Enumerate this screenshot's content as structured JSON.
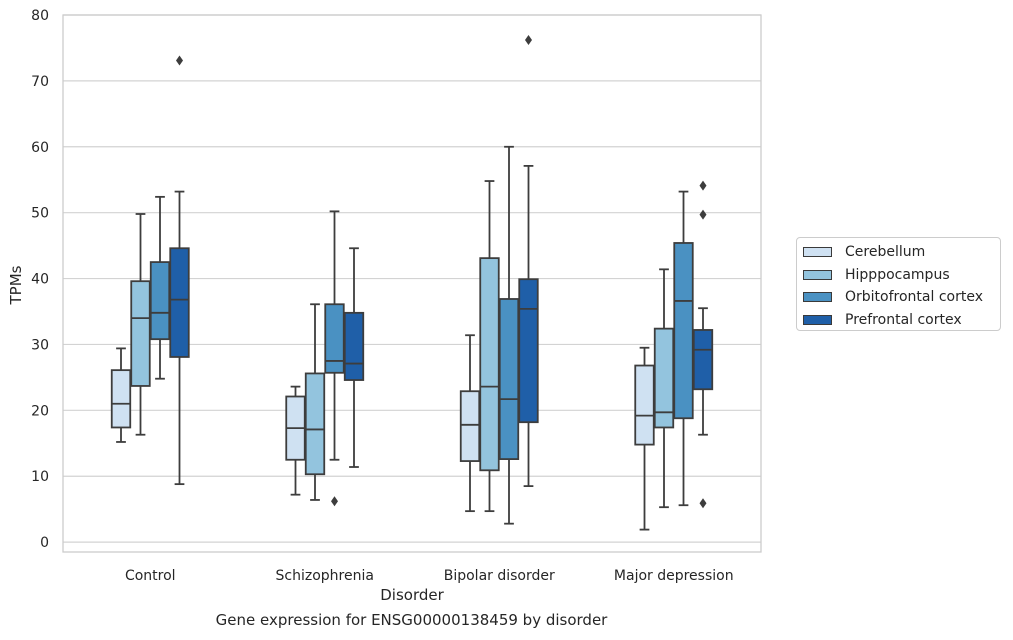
{
  "chart_data": {
    "type": "boxplot",
    "title": "",
    "caption": "Gene expression for ENSG00000138459 by disorder",
    "xlabel": "Disorder",
    "ylabel": "TPMs",
    "ylim": [
      -1.5,
      80
    ],
    "yticks": [
      0,
      10,
      20,
      30,
      40,
      50,
      60,
      70,
      80
    ],
    "grid": "horizontal",
    "legend_position": "right",
    "categories": [
      "Control",
      "Schizophrenia",
      "Bipolar disorder",
      "Major depression"
    ],
    "series": [
      {
        "name": "Cerebellum",
        "color": "#cfe1f2",
        "boxes": [
          {
            "whisker_low": 15.2,
            "q1": 17.4,
            "median": 21.0,
            "q3": 26.1,
            "whisker_high": 29.4,
            "outliers": []
          },
          {
            "whisker_low": 7.2,
            "q1": 12.5,
            "median": 17.3,
            "q3": 22.1,
            "whisker_high": 23.6,
            "outliers": []
          },
          {
            "whisker_low": 4.7,
            "q1": 12.3,
            "median": 17.8,
            "q3": 22.9,
            "whisker_high": 31.4,
            "outliers": []
          },
          {
            "whisker_low": 1.9,
            "q1": 14.8,
            "median": 19.2,
            "q3": 26.8,
            "whisker_high": 29.5,
            "outliers": []
          }
        ]
      },
      {
        "name": "Hipppocampus",
        "color": "#93c4de",
        "boxes": [
          {
            "whisker_low": 16.3,
            "q1": 23.7,
            "median": 34.0,
            "q3": 39.6,
            "whisker_high": 49.8,
            "outliers": []
          },
          {
            "whisker_low": 6.4,
            "q1": 10.3,
            "median": 17.1,
            "q3": 25.6,
            "whisker_high": 36.1,
            "outliers": []
          },
          {
            "whisker_low": 4.7,
            "q1": 10.9,
            "median": 23.6,
            "q3": 43.1,
            "whisker_high": 54.8,
            "outliers": []
          },
          {
            "whisker_low": 5.3,
            "q1": 17.4,
            "median": 19.7,
            "q3": 32.4,
            "whisker_high": 41.4,
            "outliers": []
          }
        ]
      },
      {
        "name": "Orbitofrontal cortex",
        "color": "#4a91c2",
        "boxes": [
          {
            "whisker_low": 24.8,
            "q1": 30.8,
            "median": 34.8,
            "q3": 42.5,
            "whisker_high": 52.4,
            "outliers": []
          },
          {
            "whisker_low": 12.5,
            "q1": 25.7,
            "median": 27.5,
            "q3": 36.1,
            "whisker_high": 50.2,
            "outliers": [
              6.2
            ]
          },
          {
            "whisker_low": 2.8,
            "q1": 12.6,
            "median": 21.7,
            "q3": 36.9,
            "whisker_high": 60.0,
            "outliers": []
          },
          {
            "whisker_low": 5.6,
            "q1": 18.8,
            "median": 36.6,
            "q3": 45.4,
            "whisker_high": 53.2,
            "outliers": []
          }
        ]
      },
      {
        "name": "Prefrontal cortex",
        "color": "#1f5fa8",
        "boxes": [
          {
            "whisker_low": 8.8,
            "q1": 28.1,
            "median": 36.8,
            "q3": 44.6,
            "whisker_high": 53.2,
            "outliers": [
              73.1
            ]
          },
          {
            "whisker_low": 11.4,
            "q1": 24.6,
            "median": 27.1,
            "q3": 34.8,
            "whisker_high": 44.6,
            "outliers": []
          },
          {
            "whisker_low": 8.5,
            "q1": 18.2,
            "median": 35.4,
            "q3": 39.9,
            "whisker_high": 57.1,
            "outliers": [
              76.2
            ]
          },
          {
            "whisker_low": 16.3,
            "q1": 23.2,
            "median": 29.2,
            "q3": 32.2,
            "whisker_high": 35.5,
            "outliers": [
              54.1,
              49.7,
              5.9
            ]
          }
        ]
      }
    ]
  }
}
